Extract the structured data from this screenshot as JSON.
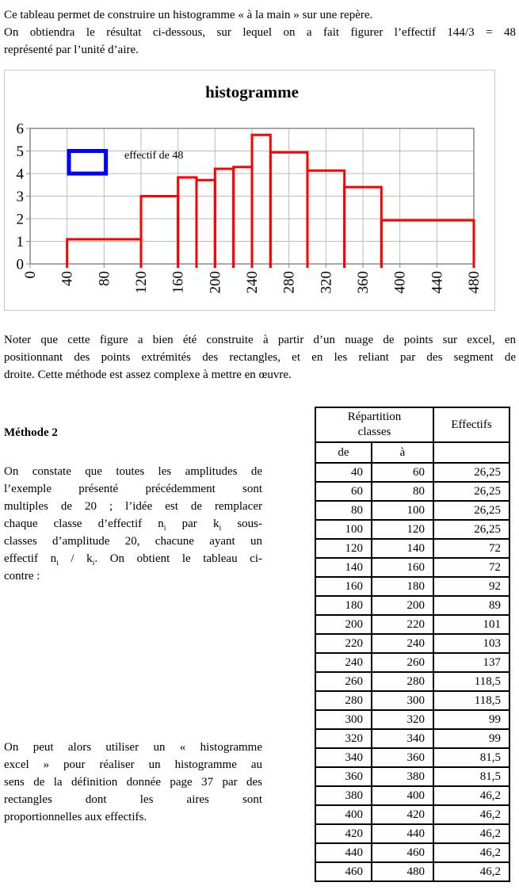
{
  "intro": {
    "para1_lines": [
      "Ce tableau permet de construire un histogramme « à la main » sur une repère."
    ],
    "para2_lines": [
      "On obtiendra le résultat ci-dessous, sur lequel on a fait figurer l’effectif 144/3 = 48",
      "représenté par l’unité d’aire."
    ]
  },
  "note": {
    "lines": [
      "Noter que cette figure a bien été construite à partir d’un nuage de points sur excel, en",
      "positionnant des points extrémités des rectangles, et en les reliant par des segment de",
      "droite. Cette méthode est assez complexe à mettre en œuvre."
    ]
  },
  "methode2": {
    "heading": "Méthode 2",
    "para1_lines": [
      "On constate que toutes les amplitudes de",
      "l’exemple présenté précédemment sont",
      "multiples de 20 ; l’idée est de remplacer",
      [
        {
          "t": "chaque classe d’effectif n"
        },
        {
          "t": "i",
          "sub": true
        },
        {
          "t": " par k"
        },
        {
          "t": "i",
          "sub": true
        },
        {
          "t": " sous-"
        }
      ],
      "classes d’amplitude 20, chacune ayant un",
      [
        {
          "t": "effectif n"
        },
        {
          "t": "i",
          "sub": true
        },
        {
          "t": " / k"
        },
        {
          "t": "i",
          "sub": true
        },
        {
          "t": ". On obtient le tableau ci-"
        }
      ],
      "contre :"
    ],
    "para2_lines": [
      "On peut alors utiliser un « histogramme",
      "excel » pour réaliser un histogramme au",
      "sens de la définition donnée page 37 par des",
      "rectangles dont les aires sont",
      "proportionnelles aux effectifs."
    ]
  },
  "table": {
    "header_group": "Répartition\nclasses",
    "header_effectifs": "Effectifs",
    "subheader_from": "de",
    "subheader_to": "à",
    "subheader_blank": "",
    "rows": [
      {
        "de": "40",
        "a": "60",
        "effectif": "26,25"
      },
      {
        "de": "60",
        "a": "80",
        "effectif": "26,25"
      },
      {
        "de": "80",
        "a": "100",
        "effectif": "26,25"
      },
      {
        "de": "100",
        "a": "120",
        "effectif": "26,25"
      },
      {
        "de": "120",
        "a": "140",
        "effectif": "72"
      },
      {
        "de": "140",
        "a": "160",
        "effectif": "72"
      },
      {
        "de": "160",
        "a": "180",
        "effectif": "92"
      },
      {
        "de": "180",
        "a": "200",
        "effectif": "89"
      },
      {
        "de": "200",
        "a": "220",
        "effectif": "101"
      },
      {
        "de": "220",
        "a": "240",
        "effectif": "103"
      },
      {
        "de": "240",
        "a": "260",
        "effectif": "137"
      },
      {
        "de": "260",
        "a": "280",
        "effectif": "118,5"
      },
      {
        "de": "280",
        "a": "300",
        "effectif": "118,5"
      },
      {
        "de": "300",
        "a": "320",
        "effectif": "99"
      },
      {
        "de": "320",
        "a": "340",
        "effectif": "99"
      },
      {
        "de": "340",
        "a": "360",
        "effectif": "81,5"
      },
      {
        "de": "360",
        "a": "380",
        "effectif": "81,5"
      },
      {
        "de": "380",
        "a": "400",
        "effectif": "46,2"
      },
      {
        "de": "400",
        "a": "420",
        "effectif": "46,2"
      },
      {
        "de": "420",
        "a": "440",
        "effectif": "46,2"
      },
      {
        "de": "440",
        "a": "460",
        "effectif": "46,2"
      },
      {
        "de": "460",
        "a": "480",
        "effectif": "46,2"
      }
    ]
  },
  "chart_data": {
    "type": "bar",
    "title": "histogramme",
    "legend_label": "effectif de 48",
    "unit_area_effectif": 48,
    "xlim": [
      0,
      480
    ],
    "ylim": [
      0,
      6
    ],
    "x_ticks": [
      0,
      40,
      80,
      120,
      160,
      200,
      240,
      280,
      320,
      360,
      400,
      440,
      480
    ],
    "y_ticks": [
      0,
      1,
      2,
      3,
      4,
      5,
      6
    ],
    "grid": true,
    "bars": [
      {
        "from": 40,
        "to": 120,
        "height": 1.09
      },
      {
        "from": 120,
        "to": 160,
        "height": 3.0
      },
      {
        "from": 160,
        "to": 180,
        "height": 3.83
      },
      {
        "from": 180,
        "to": 200,
        "height": 3.71
      },
      {
        "from": 200,
        "to": 220,
        "height": 4.21
      },
      {
        "from": 220,
        "to": 240,
        "height": 4.29
      },
      {
        "from": 240,
        "to": 260,
        "height": 5.71
      },
      {
        "from": 260,
        "to": 300,
        "height": 4.94
      },
      {
        "from": 300,
        "to": 340,
        "height": 4.13
      },
      {
        "from": 340,
        "to": 380,
        "height": 3.4
      },
      {
        "from": 380,
        "to": 480,
        "height": 1.93
      }
    ],
    "legend_box": {
      "x_from": 42,
      "x_to": 82,
      "y_from": 4,
      "y_to": 5
    },
    "colors": {
      "bar": "#ff0000",
      "legend": "#0000ff",
      "grid": "#bbbbbb",
      "frame": "#8a8a8a",
      "text": "#000000"
    }
  }
}
